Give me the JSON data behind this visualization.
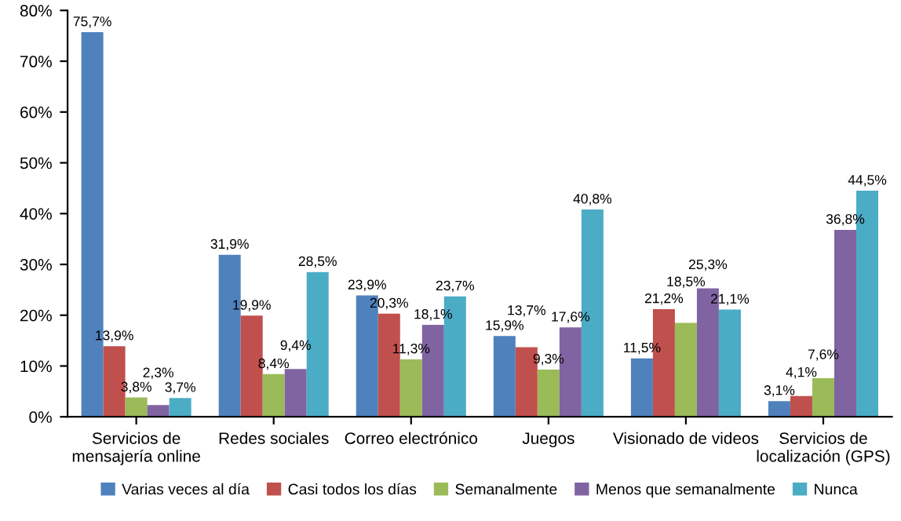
{
  "chart_data": {
    "type": "bar",
    "categories": [
      "Servicios de\nmensajería online",
      "Redes sociales",
      "Correo electrónico",
      "Juegos",
      "Visionado de videos",
      "Servicios de\nlocalización (GPS)"
    ],
    "series": [
      {
        "name": "Varias veces al día",
        "color": "#4f81bd",
        "values": [
          75.7,
          31.9,
          23.9,
          15.9,
          11.5,
          3.1
        ],
        "value_labels": [
          "75,7%",
          "31,9%",
          "23,9%",
          "15,9%",
          "11,5%",
          "3,1%"
        ]
      },
      {
        "name": "Casi todos los días",
        "color": "#c0504d",
        "values": [
          13.9,
          19.9,
          20.3,
          13.7,
          21.2,
          4.1
        ],
        "value_labels": [
          "13,9%",
          "19,9%",
          "20,3%",
          "13,7%",
          "21,2%",
          "4,1%"
        ]
      },
      {
        "name": "Semanalmente",
        "color": "#9bbb59",
        "values": [
          3.8,
          8.4,
          11.3,
          9.3,
          18.5,
          7.6
        ],
        "value_labels": [
          "3,8%",
          "8,4%",
          "11,3%",
          "9,3%",
          "18,5%",
          "7,6%"
        ]
      },
      {
        "name": "Menos que semanalmente",
        "color": "#8064a2",
        "values": [
          2.3,
          9.4,
          18.1,
          17.6,
          25.3,
          36.8
        ],
        "value_labels": [
          "2,3%",
          "9,4%",
          "18,1%",
          "17,6%",
          "25,3%",
          "36,8%"
        ]
      },
      {
        "name": "Nunca",
        "color": "#4bacc6",
        "values": [
          3.7,
          28.5,
          23.7,
          40.8,
          21.1,
          44.5
        ],
        "value_labels": [
          "3,7%",
          "28,5%",
          "23,7%",
          "40,8%",
          "21,1%",
          "44,5%"
        ]
      }
    ],
    "ylim": [
      0,
      80
    ],
    "yticks": [
      {
        "value": 0,
        "label": "0%"
      },
      {
        "value": 10,
        "label": "10%"
      },
      {
        "value": 20,
        "label": "20%"
      },
      {
        "value": 30,
        "label": "30%"
      },
      {
        "value": 40,
        "label": "40%"
      },
      {
        "value": 50,
        "label": "50%"
      },
      {
        "value": 60,
        "label": "60%"
      },
      {
        "value": 70,
        "label": "70%"
      },
      {
        "value": 80,
        "label": "80%"
      }
    ],
    "grid": false,
    "legend": "bottom"
  }
}
